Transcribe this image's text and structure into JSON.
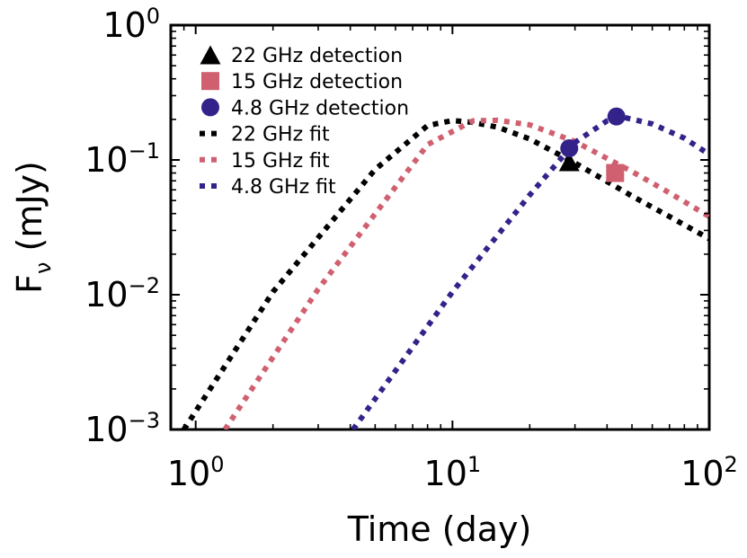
{
  "chart_data": {
    "type": "line",
    "title": "",
    "xlabel": "Time (day)",
    "ylabel_main": "F",
    "ylabel_sub": "ν",
    "ylabel_unit": "(mJy)",
    "xscale": "log",
    "yscale": "log",
    "xlim": [
      0.8,
      100
    ],
    "ylim": [
      0.001,
      1
    ],
    "grid": false,
    "legend_position": "top-left",
    "x_ticks": [
      {
        "value": 1,
        "base": "10",
        "exp": "0"
      },
      {
        "value": 10,
        "base": "10",
        "exp": "1"
      },
      {
        "value": 100,
        "base": "10",
        "exp": "2"
      }
    ],
    "y_ticks": [
      {
        "value": 0.001,
        "base": "10",
        "exp": "−3"
      },
      {
        "value": 0.01,
        "base": "10",
        "exp": "−2"
      },
      {
        "value": 0.1,
        "base": "10",
        "exp": "−1"
      },
      {
        "value": 1,
        "base": "10",
        "exp": "0"
      }
    ],
    "detections": [
      {
        "name": "22 GHz detection",
        "marker": "triangle",
        "color": "#000000",
        "x": 28.5,
        "y": 0.097
      },
      {
        "name": "15 GHz detection",
        "marker": "square",
        "color": "#d06070",
        "x": 43.0,
        "y": 0.08
      },
      {
        "name": "4.8 GHz detection",
        "marker": "circle",
        "color": "#33228a",
        "x": 28.5,
        "y": 0.122
      },
      {
        "name": "4.8 GHz detection",
        "marker": "circle",
        "color": "#33228a",
        "x": 43.5,
        "y": 0.21
      }
    ],
    "series": [
      {
        "name": "22 GHz fit",
        "color": "#000000",
        "x": [
          0.9,
          2,
          5,
          8,
          10,
          12,
          15,
          20,
          30,
          50,
          70,
          100
        ],
        "values": [
          0.001,
          0.0105,
          0.085,
          0.18,
          0.196,
          0.19,
          0.175,
          0.143,
          0.095,
          0.054,
          0.038,
          0.026
        ]
      },
      {
        "name": "15 GHz fit",
        "color": "#d06070",
        "x": [
          1.3,
          3,
          8,
          12,
          15,
          20,
          30,
          50,
          70,
          100
        ],
        "values": [
          0.001,
          0.011,
          0.13,
          0.195,
          0.197,
          0.182,
          0.137,
          0.082,
          0.057,
          0.038
        ]
      },
      {
        "name": "4.8 GHz fit",
        "color": "#33228a",
        "x": [
          4.1,
          10,
          20,
          30,
          40,
          45,
          60,
          80,
          100
        ],
        "values": [
          0.001,
          0.0105,
          0.055,
          0.135,
          0.195,
          0.21,
          0.185,
          0.145,
          0.11
        ]
      }
    ],
    "legend": [
      {
        "label": "22 GHz detection",
        "kind": "triangle",
        "color": "#000000"
      },
      {
        "label": "15 GHz detection",
        "kind": "square",
        "color": "#d06070"
      },
      {
        "label": "4.8 GHz detection",
        "kind": "circle",
        "color": "#33228a"
      },
      {
        "label": "22 GHz fit",
        "kind": "line",
        "color": "#000000"
      },
      {
        "label": "15 GHz fit",
        "kind": "line",
        "color": "#d06070"
      },
      {
        "label": "4.8 GHz fit",
        "kind": "line",
        "color": "#33228a"
      }
    ]
  }
}
